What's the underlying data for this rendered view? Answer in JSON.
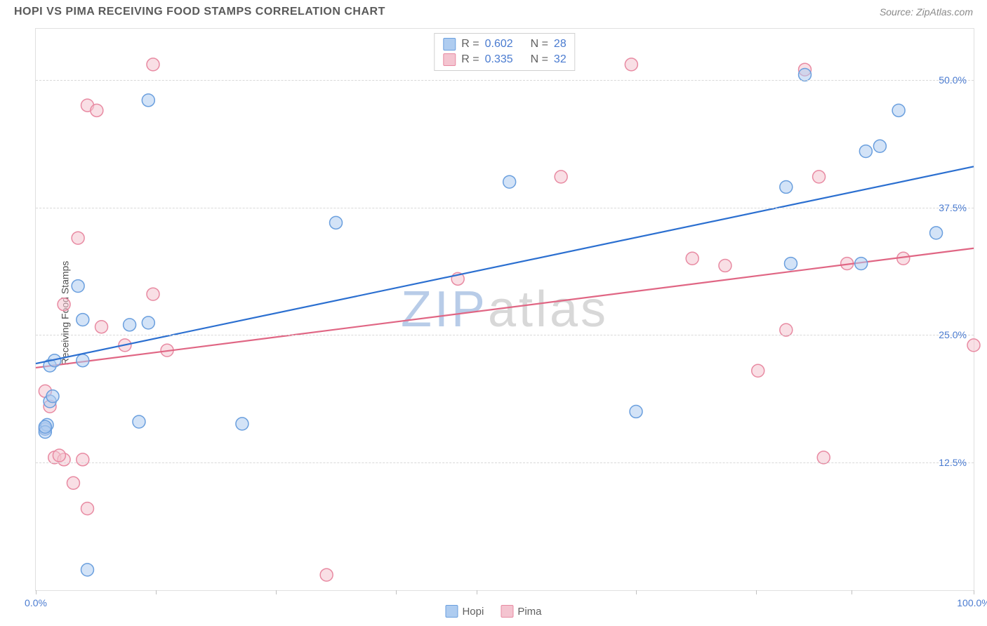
{
  "header": {
    "title": "HOPI VS PIMA RECEIVING FOOD STAMPS CORRELATION CHART",
    "source": "Source: ZipAtlas.com"
  },
  "watermark": {
    "text": "ZIPatlas",
    "prefix_color": "#b8cce8",
    "suffix_color": "#d8d8d8"
  },
  "chart": {
    "type": "scatter",
    "y_label": "Receiving Food Stamps",
    "xlim": [
      0,
      100
    ],
    "ylim": [
      0,
      55
    ],
    "x_ticks": [
      0,
      12.8,
      25.6,
      38.4,
      47,
      64,
      76.8,
      87,
      100
    ],
    "x_tick_labels": {
      "0": "0.0%",
      "100": "100.0%"
    },
    "y_ticks": [
      12.5,
      25.0,
      37.5,
      50.0
    ],
    "y_tick_labels": [
      "12.5%",
      "25.0%",
      "37.5%",
      "50.0%"
    ],
    "grid_color": "#d8d8d8",
    "background_color": "#ffffff",
    "border_color": "#e0e0e0",
    "marker_radius": 9,
    "marker_opacity": 0.55,
    "line_width": 2.2,
    "series": {
      "hopi": {
        "label": "Hopi",
        "fill": "#aeccf0",
        "stroke": "#6a9fde",
        "line_color": "#2b6fd0",
        "R": "0.602",
        "N": "28",
        "regression": {
          "y_at_x0": 22.2,
          "y_at_x100": 41.5
        },
        "points": [
          {
            "x": 1.5,
            "y": 22.0
          },
          {
            "x": 1.0,
            "y": 15.8
          },
          {
            "x": 1.2,
            "y": 16.2
          },
          {
            "x": 4.5,
            "y": 29.8
          },
          {
            "x": 5.0,
            "y": 26.5
          },
          {
            "x": 12.0,
            "y": 48.0
          },
          {
            "x": 10.0,
            "y": 26.0
          },
          {
            "x": 12.0,
            "y": 26.2
          },
          {
            "x": 11.0,
            "y": 16.5
          },
          {
            "x": 5.0,
            "y": 22.5
          },
          {
            "x": 1.5,
            "y": 18.5
          },
          {
            "x": 22.0,
            "y": 16.3
          },
          {
            "x": 5.5,
            "y": 2.0
          },
          {
            "x": 32.0,
            "y": 36.0
          },
          {
            "x": 50.5,
            "y": 40.0
          },
          {
            "x": 64.0,
            "y": 17.5
          },
          {
            "x": 80.5,
            "y": 32.0
          },
          {
            "x": 82.0,
            "y": 50.5
          },
          {
            "x": 80.0,
            "y": 39.5
          },
          {
            "x": 88.5,
            "y": 43.0
          },
          {
            "x": 88.0,
            "y": 32.0
          },
          {
            "x": 90.0,
            "y": 43.5
          },
          {
            "x": 92.0,
            "y": 47.0
          },
          {
            "x": 96.0,
            "y": 35.0
          },
          {
            "x": 1.0,
            "y": 15.5
          },
          {
            "x": 2.0,
            "y": 22.5
          },
          {
            "x": 1.8,
            "y": 19.0
          },
          {
            "x": 1.0,
            "y": 16.0
          }
        ]
      },
      "pima": {
        "label": "Pima",
        "fill": "#f4c4d0",
        "stroke": "#e88aa2",
        "line_color": "#e06684",
        "R": "0.335",
        "N": "32",
        "regression": {
          "y_at_x0": 21.8,
          "y_at_x100": 33.5
        },
        "points": [
          {
            "x": 1.0,
            "y": 19.5
          },
          {
            "x": 1.5,
            "y": 18.0
          },
          {
            "x": 2.0,
            "y": 13.0
          },
          {
            "x": 3.0,
            "y": 12.8
          },
          {
            "x": 5.0,
            "y": 12.8
          },
          {
            "x": 4.0,
            "y": 10.5
          },
          {
            "x": 5.5,
            "y": 8.0
          },
          {
            "x": 3.0,
            "y": 28.0
          },
          {
            "x": 4.5,
            "y": 34.5
          },
          {
            "x": 5.5,
            "y": 47.5
          },
          {
            "x": 7.0,
            "y": 25.8
          },
          {
            "x": 9.5,
            "y": 24.0
          },
          {
            "x": 12.5,
            "y": 51.5
          },
          {
            "x": 12.5,
            "y": 29.0
          },
          {
            "x": 14.0,
            "y": 23.5
          },
          {
            "x": 31.0,
            "y": 1.5
          },
          {
            "x": 45.0,
            "y": 30.5
          },
          {
            "x": 56.0,
            "y": 40.5
          },
          {
            "x": 63.5,
            "y": 51.5
          },
          {
            "x": 70.0,
            "y": 32.5
          },
          {
            "x": 73.5,
            "y": 31.8
          },
          {
            "x": 77.0,
            "y": 21.5
          },
          {
            "x": 80.0,
            "y": 25.5
          },
          {
            "x": 82.0,
            "y": 51.0
          },
          {
            "x": 84.0,
            "y": 13.0
          },
          {
            "x": 86.5,
            "y": 32.0
          },
          {
            "x": 83.5,
            "y": 40.5
          },
          {
            "x": 92.5,
            "y": 32.5
          },
          {
            "x": 100.0,
            "y": 24.0
          },
          {
            "x": 1.0,
            "y": 15.8
          },
          {
            "x": 6.5,
            "y": 47.0
          },
          {
            "x": 2.5,
            "y": 13.2
          }
        ]
      }
    }
  },
  "stats_legend": {
    "R_label": "R =",
    "N_label": "N ="
  },
  "bottom_legend": {
    "items": [
      "Hopi",
      "Pima"
    ]
  }
}
